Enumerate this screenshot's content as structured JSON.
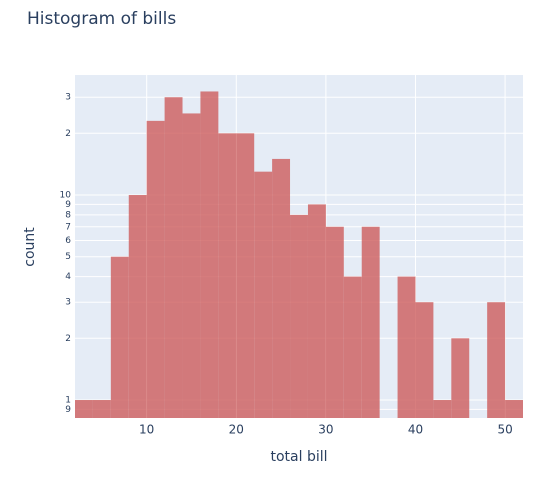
{
  "chart_data": {
    "type": "histogram",
    "title": "Histogram of bills",
    "xlabel": "total bill",
    "ylabel": "count",
    "bins": [
      2,
      4,
      6,
      8,
      10,
      12,
      14,
      16,
      18,
      20,
      22,
      24,
      26,
      28,
      30,
      32,
      34,
      36,
      38,
      40,
      42,
      44,
      46,
      48,
      50,
      52
    ],
    "values": [
      1,
      1,
      5,
      10,
      23,
      30,
      25,
      32,
      20,
      20,
      13,
      15,
      8,
      9,
      7,
      4,
      7,
      0,
      4,
      3,
      1,
      2,
      0,
      3,
      1
    ],
    "color": "#cd5c5c",
    "opacity": 0.8,
    "xlim": [
      2,
      52
    ],
    "xticks": [
      10,
      20,
      30,
      40,
      50
    ],
    "ylim": [
      0.817,
      38.5
    ],
    "log_y": true,
    "yticks": [
      {
        "value": 0.9,
        "label": "9"
      },
      1,
      2,
      3,
      4,
      5,
      6,
      7,
      8,
      9,
      10,
      {
        "value": 20,
        "label": "2"
      },
      {
        "value": 30,
        "label": "3"
      }
    ],
    "grid": true
  }
}
